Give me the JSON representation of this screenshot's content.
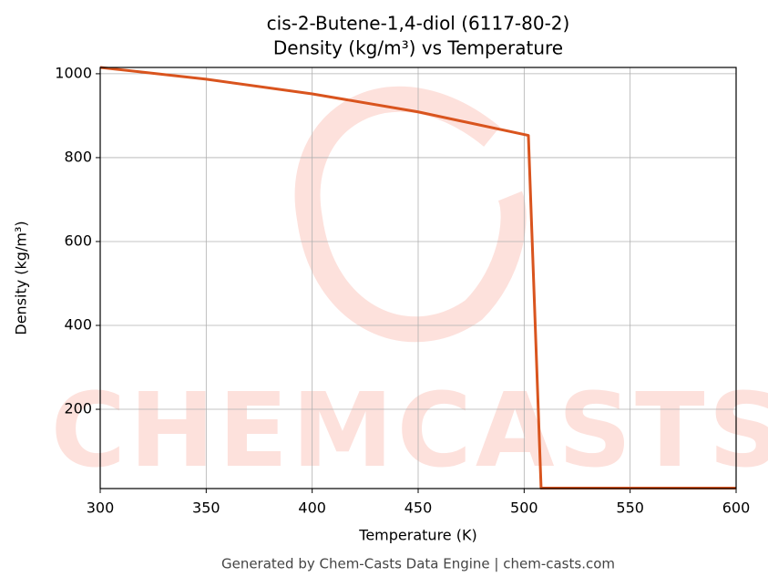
{
  "chart_data": {
    "type": "line",
    "title": "cis-2-Butene-1,4-diol (6117-80-2)",
    "subtitle": "Density (kg/m³) vs Temperature",
    "x_label": "Temperature (K)",
    "y_label": "Density (kg/m³)",
    "watermark": "CHEMCASTS",
    "footer": "Generated by Chem-Casts Data Engine | chem-casts.com",
    "x": [
      300,
      350,
      400,
      450,
      502,
      508,
      600
    ],
    "series": [
      {
        "name": "Density",
        "color": "#d9541e",
        "values": [
          1015,
          987,
          952,
          909,
          853,
          12,
          12
        ]
      }
    ],
    "xlim": [
      300,
      600
    ],
    "xticks": [
      300,
      350,
      400,
      450,
      500,
      550,
      600
    ],
    "ylim": [
      11,
      1015
    ],
    "yticks": [
      200,
      400,
      600,
      800,
      1000
    ],
    "grid": true
  }
}
